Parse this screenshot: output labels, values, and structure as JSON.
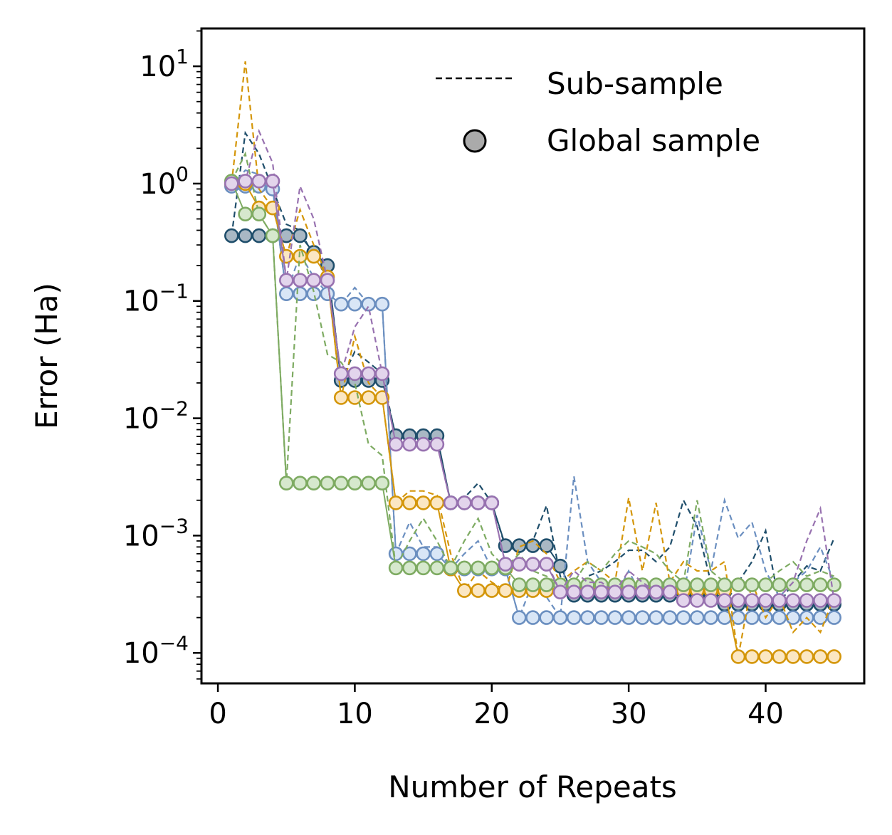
{
  "chart_data": {
    "type": "line",
    "title": "",
    "xlabel": "Number of Repeats",
    "ylabel": "Error (Ha)",
    "xlim": [
      -1.2,
      47.2
    ],
    "ylim": [
      5.5e-05,
      21
    ],
    "yscale": "log",
    "x_ticks": [
      0,
      10,
      20,
      30,
      40
    ],
    "y_ticks": [
      {
        "value": 10,
        "base": "10",
        "exp": "1"
      },
      {
        "value": 1,
        "base": "10",
        "exp": "0"
      },
      {
        "value": 0.1,
        "base": "10",
        "exp": "−1"
      },
      {
        "value": 0.01,
        "base": "10",
        "exp": "−2"
      },
      {
        "value": 0.001,
        "base": "10",
        "exp": "−3"
      },
      {
        "value": 0.0001,
        "base": "10",
        "exp": "−4"
      }
    ],
    "legend": {
      "placement": "top-right",
      "entries": [
        {
          "label": "Sub-sample",
          "marker": "dashed-line"
        },
        {
          "label": "Global sample",
          "marker": "circle"
        }
      ],
      "marker_color": "#aaaaaa"
    },
    "series": [
      {
        "name": "dark-blue",
        "color": "#1f4e6b",
        "fill": "#a9b8c4",
        "x": [
          1,
          2,
          3,
          4,
          5,
          6,
          7,
          8,
          9,
          10,
          11,
          12,
          13,
          14,
          15,
          16,
          17,
          18,
          19,
          20,
          21,
          22,
          23,
          24,
          25,
          26,
          27,
          28,
          29,
          30,
          31,
          32,
          33,
          34,
          35,
          36,
          37,
          38,
          39,
          40,
          41,
          42,
          43,
          44,
          45
        ],
        "global": [
          0.36,
          0.36,
          0.36,
          0.36,
          0.36,
          0.36,
          0.26,
          0.2,
          0.021,
          0.021,
          0.021,
          0.021,
          0.0071,
          0.0071,
          0.0071,
          0.0071,
          0.0019,
          0.0019,
          0.0019,
          0.0019,
          0.00082,
          0.00082,
          0.00082,
          0.00082,
          0.00055,
          0.00031,
          0.00031,
          0.00031,
          0.00031,
          0.00031,
          0.00031,
          0.00031,
          0.00031,
          0.00031,
          0.00031,
          0.00031,
          0.00026,
          0.00026,
          0.00026,
          0.00026,
          0.00026,
          0.00026,
          0.00026,
          0.00026,
          0.00026
        ],
        "sub": [
          0.36,
          2.7,
          1.8,
          0.9,
          0.45,
          0.4,
          0.24,
          0.2,
          0.021,
          0.037,
          0.03,
          0.024,
          0.0068,
          0.0068,
          0.0066,
          0.0066,
          0.0019,
          0.0021,
          0.0028,
          0.0019,
          0.0008,
          0.00075,
          0.0009,
          0.0018,
          0.00045,
          0.0003,
          0.00045,
          0.0005,
          0.0006,
          0.00075,
          0.00075,
          0.0006,
          0.0008,
          0.002,
          0.0012,
          0.0004,
          0.00026,
          0.0004,
          0.0006,
          0.0011,
          0.00026,
          0.0004,
          0.00055,
          0.0005,
          0.00095
        ]
      },
      {
        "name": "light-blue",
        "color": "#6b8fc0",
        "fill": "#d9e6f6",
        "x": [
          1,
          2,
          3,
          4,
          5,
          6,
          7,
          8,
          9,
          10,
          11,
          12,
          13,
          14,
          15,
          16,
          17,
          18,
          19,
          20,
          21,
          22,
          23,
          24,
          25,
          26,
          27,
          28,
          29,
          30,
          31,
          32,
          33,
          34,
          35,
          36,
          37,
          38,
          39,
          40,
          41,
          42,
          43,
          44,
          45
        ],
        "global": [
          0.95,
          0.95,
          0.95,
          0.9,
          0.115,
          0.115,
          0.115,
          0.115,
          0.094,
          0.094,
          0.094,
          0.094,
          0.0007,
          0.0007,
          0.0007,
          0.0007,
          0.00052,
          0.00052,
          0.00052,
          0.00052,
          0.00052,
          0.0002,
          0.0002,
          0.0002,
          0.0002,
          0.0002,
          0.0002,
          0.0002,
          0.0002,
          0.0002,
          0.0002,
          0.0002,
          0.0002,
          0.0002,
          0.0002,
          0.0002,
          0.0002,
          0.0002,
          0.0002,
          0.0002,
          0.0002,
          0.0002,
          0.0002,
          0.0002,
          0.0002
        ],
        "sub": [
          0.95,
          1.3,
          1.2,
          0.9,
          0.115,
          0.25,
          0.16,
          0.115,
          0.094,
          0.13,
          0.094,
          0.094,
          0.0007,
          0.0013,
          0.0008,
          0.0008,
          0.00052,
          0.0007,
          0.0009,
          0.00052,
          0.00052,
          0.0002,
          0.0004,
          0.0003,
          0.0002,
          0.0032,
          0.0006,
          0.0004,
          0.0003,
          0.0005,
          0.0003,
          0.0004,
          0.0004,
          0.0003,
          0.0015,
          0.0005,
          0.002,
          0.00095,
          0.0013,
          0.0005,
          0.0003,
          0.0004,
          0.0005,
          0.0008,
          0.0004
        ]
      },
      {
        "name": "orange",
        "color": "#d4960a",
        "fill": "#fbe7c3",
        "x": [
          1,
          2,
          3,
          4,
          5,
          6,
          7,
          8,
          9,
          10,
          11,
          12,
          13,
          14,
          15,
          16,
          17,
          18,
          19,
          20,
          21,
          22,
          23,
          24,
          25,
          26,
          27,
          28,
          29,
          30,
          31,
          32,
          33,
          34,
          35,
          36,
          37,
          38,
          39,
          40,
          41,
          42,
          43,
          44,
          45
        ],
        "global": [
          1.0,
          1.0,
          0.62,
          0.62,
          0.24,
          0.24,
          0.24,
          0.16,
          0.015,
          0.015,
          0.015,
          0.015,
          0.0019,
          0.0019,
          0.0019,
          0.0019,
          0.00052,
          0.00034,
          0.00034,
          0.00034,
          0.00034,
          0.00034,
          0.00034,
          0.00034,
          0.00034,
          0.00034,
          0.00034,
          0.00034,
          0.00034,
          0.00034,
          0.00034,
          0.00034,
          0.00034,
          0.00034,
          0.00034,
          0.00034,
          0.00034,
          9.3e-05,
          9.3e-05,
          9.3e-05,
          9.3e-05,
          9.3e-05,
          9.3e-05,
          9.3e-05,
          9.3e-05
        ],
        "sub": [
          1.0,
          11.0,
          0.9,
          0.62,
          0.24,
          0.6,
          0.3,
          0.16,
          0.015,
          0.05,
          0.02,
          0.015,
          0.0019,
          0.0024,
          0.0024,
          0.0022,
          0.0007,
          0.00034,
          0.0005,
          0.0004,
          0.00034,
          0.0008,
          0.0009,
          0.0007,
          0.0004,
          0.0005,
          0.0006,
          0.0005,
          0.0004,
          0.0021,
          0.0005,
          0.0019,
          0.0004,
          0.0006,
          0.0005,
          0.0005,
          0.0006,
          9.3e-05,
          0.0004,
          0.0002,
          0.0003,
          0.00015,
          0.0002,
          0.00015,
          0.0003
        ]
      },
      {
        "name": "green",
        "color": "#7eab62",
        "fill": "#d6e8cd",
        "x": [
          1,
          2,
          3,
          4,
          5,
          6,
          7,
          8,
          9,
          10,
          11,
          12,
          13,
          14,
          15,
          16,
          17,
          18,
          19,
          20,
          21,
          22,
          23,
          24,
          25,
          26,
          27,
          28,
          29,
          30,
          31,
          32,
          33,
          34,
          35,
          36,
          37,
          38,
          39,
          40,
          41,
          42,
          43,
          44,
          45
        ],
        "global": [
          1.05,
          0.55,
          0.55,
          0.36,
          0.0028,
          0.0028,
          0.0028,
          0.0028,
          0.0028,
          0.0028,
          0.0028,
          0.0028,
          0.00053,
          0.00053,
          0.00053,
          0.00053,
          0.00053,
          0.00053,
          0.00053,
          0.00053,
          0.00053,
          0.00038,
          0.00038,
          0.00038,
          0.00038,
          0.00038,
          0.00038,
          0.00038,
          0.00038,
          0.00038,
          0.00038,
          0.00038,
          0.00038,
          0.00038,
          0.00038,
          0.00038,
          0.00038,
          0.00038,
          0.00038,
          0.00038,
          0.00038,
          0.00038,
          0.00038,
          0.00038,
          0.00038
        ],
        "sub": [
          1.05,
          1.8,
          0.55,
          0.36,
          0.0028,
          0.3,
          0.12,
          0.035,
          0.03,
          0.02,
          0.006,
          0.0048,
          0.00053,
          0.0009,
          0.0014,
          0.0009,
          0.00053,
          0.0009,
          0.0014,
          0.0007,
          0.00053,
          0.0007,
          0.0005,
          0.00045,
          0.00038,
          0.0004,
          0.0006,
          0.0005,
          0.0007,
          0.0009,
          0.0008,
          0.0007,
          0.0005,
          0.0004,
          0.002,
          0.0005,
          0.0004,
          0.0004,
          0.0004,
          0.0004,
          0.0005,
          0.0006,
          0.00045,
          0.0005,
          0.00045
        ]
      },
      {
        "name": "purple",
        "color": "#9872b0",
        "fill": "#e3d5ec",
        "x": [
          1,
          2,
          3,
          4,
          5,
          6,
          7,
          8,
          9,
          10,
          11,
          12,
          13,
          14,
          15,
          16,
          17,
          18,
          19,
          20,
          21,
          22,
          23,
          24,
          25,
          26,
          27,
          28,
          29,
          30,
          31,
          32,
          33,
          34,
          35,
          36,
          37,
          38,
          39,
          40,
          41,
          42,
          43,
          44,
          45
        ],
        "global": [
          1.0,
          1.05,
          1.05,
          1.05,
          0.15,
          0.15,
          0.15,
          0.15,
          0.024,
          0.024,
          0.024,
          0.024,
          0.006,
          0.006,
          0.006,
          0.006,
          0.0019,
          0.0019,
          0.0019,
          0.0019,
          0.00057,
          0.00057,
          0.00057,
          0.00057,
          0.00033,
          0.00033,
          0.00033,
          0.00033,
          0.00033,
          0.00033,
          0.00033,
          0.00033,
          0.00033,
          0.00028,
          0.00028,
          0.00028,
          0.00028,
          0.00028,
          0.00028,
          0.00028,
          0.00028,
          0.00028,
          0.00028,
          0.00028,
          0.00028
        ],
        "sub": [
          1.0,
          1.05,
          2.8,
          1.5,
          0.15,
          0.95,
          0.5,
          0.15,
          0.024,
          0.06,
          0.09,
          0.024,
          0.006,
          0.0058,
          0.0058,
          0.006,
          0.0019,
          0.0019,
          0.002,
          0.0019,
          0.00057,
          0.00057,
          0.00057,
          0.0006,
          0.00033,
          0.0005,
          0.0004,
          0.0004,
          0.00033,
          0.0005,
          0.0004,
          0.00033,
          0.00033,
          0.00028,
          0.00028,
          0.0003,
          0.00028,
          0.00028,
          0.0003,
          0.00028,
          0.0003,
          0.0004,
          0.0009,
          0.0017,
          0.00028
        ]
      }
    ]
  }
}
